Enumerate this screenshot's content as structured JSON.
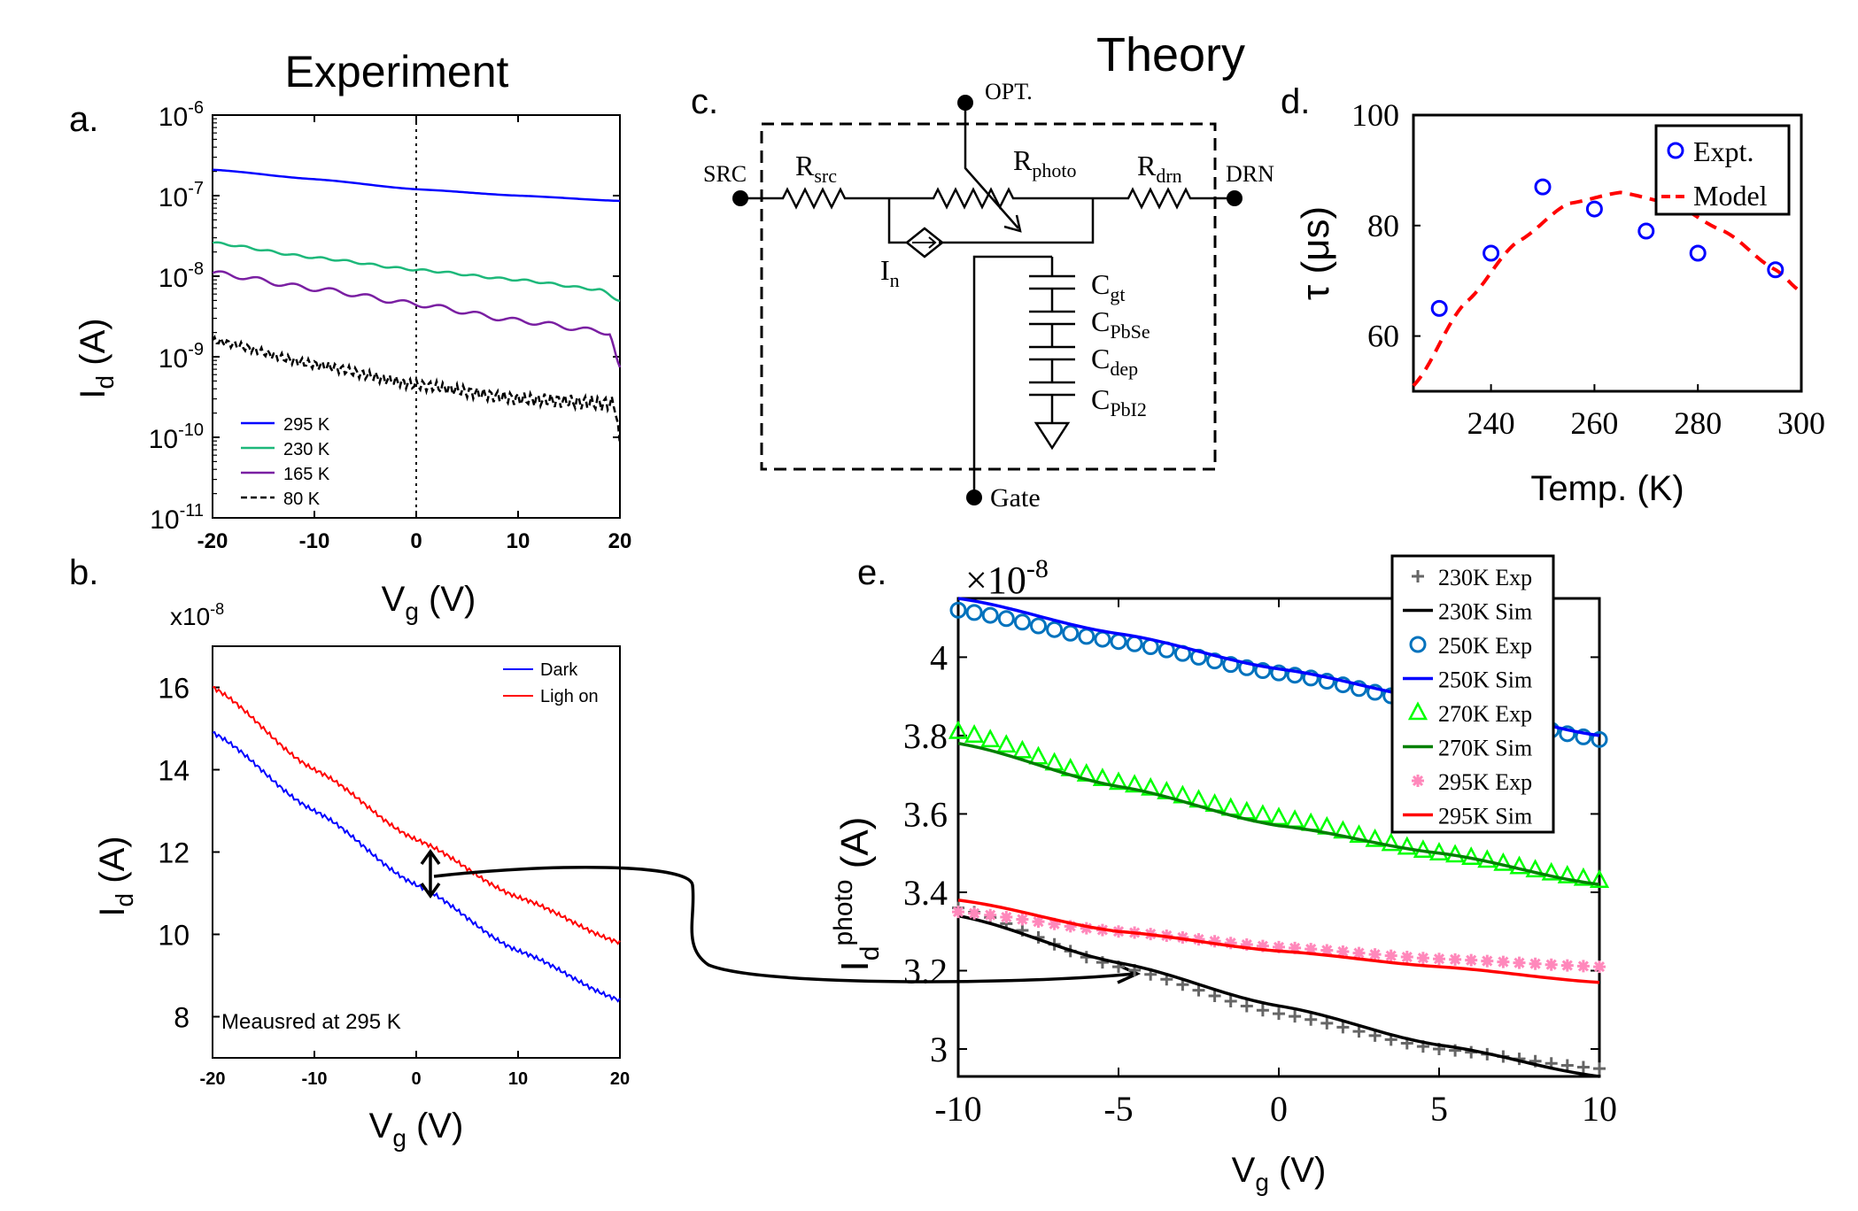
{
  "titles": {
    "experiment": "Experiment",
    "theory": "Theory"
  },
  "panel_labels": {
    "a": "a.",
    "b": "b.",
    "c": "c.",
    "d": "d.",
    "e": "e."
  },
  "colors": {
    "blue": "#0000ff",
    "green": "#1db87a",
    "purple": "#7a1fa2",
    "black": "#000000",
    "red": "#ff0000",
    "e_blue_marker": "#0072bd",
    "e_green": "#00ff00",
    "e_darkgreen": "#008000",
    "e_pink": "#ff88bb",
    "e_gray": "#666666"
  },
  "circuit": {
    "opt": "OPT.",
    "src": "SRC",
    "drn": "DRN",
    "gate": "Gate",
    "r_src": {
      "main": "R",
      "sub": "src"
    },
    "r_photo": {
      "main": "R",
      "sub": "photo"
    },
    "r_drn": {
      "main": "R",
      "sub": "drn"
    },
    "i_n": {
      "main": "I",
      "sub": "n"
    },
    "c_gt": {
      "main": "C",
      "sub": "gt"
    },
    "c_pbse": {
      "main": "C",
      "sub": "PbSe"
    },
    "c_dep": {
      "main": "C",
      "sub": "dep"
    },
    "c_pbi2": {
      "main": "C",
      "sub": "PbI2"
    }
  },
  "chart_data": [
    {
      "id": "a",
      "type": "line",
      "xlabel": {
        "main": "V",
        "sub": "g",
        "rest": " (V)"
      },
      "ylabel": {
        "main": "I",
        "sub": "d",
        "rest": " (A)"
      },
      "yscale": "log",
      "xlim": [
        -20,
        20
      ],
      "ylim": [
        1e-11,
        1e-06
      ],
      "xticks": [
        "-20",
        "-10",
        "0",
        "10",
        "20"
      ],
      "yticks": [
        {
          "base": "10",
          "exp": "-6",
          "value": 1e-06
        },
        {
          "base": "10",
          "exp": "-7",
          "value": 1e-07
        },
        {
          "base": "10",
          "exp": "-8",
          "value": 1e-08
        },
        {
          "base": "10",
          "exp": "-9",
          "value": 1e-09
        },
        {
          "base": "10",
          "exp": "-10",
          "value": 1e-10
        },
        {
          "base": "10",
          "exp": "-11",
          "value": 1e-11
        }
      ],
      "vline_x": 0,
      "legend_position": "bottom-left",
      "series": [
        {
          "name": "295 K",
          "color": "#0000ff",
          "dash": false,
          "x": [
            -20,
            -10,
            0,
            10,
            20
          ],
          "y": [
            2.1e-07,
            1.6e-07,
            1.2e-07,
            1e-07,
            8.6e-08
          ]
        },
        {
          "name": "230 K",
          "color": "#1db87a",
          "dash": false,
          "x": [
            -20,
            -10,
            0,
            10,
            18,
            20
          ],
          "y": [
            2.6e-08,
            1.7e-08,
            1.2e-08,
            9e-09,
            6.8e-09,
            5e-09
          ]
        },
        {
          "name": "165 K",
          "color": "#7a1fa2",
          "dash": false,
          "x": [
            -20,
            -10,
            0,
            10,
            19,
            20
          ],
          "y": [
            1.1e-08,
            7e-09,
            4.5e-09,
            2.8e-09,
            2e-09,
            7e-10
          ]
        },
        {
          "name": "80 K",
          "color": "#000000",
          "dash": true,
          "x": [
            -20,
            -10,
            0,
            10,
            19.5,
            20
          ],
          "y": [
            1.6e-09,
            8e-10,
            4.5e-10,
            3e-10,
            2.6e-10,
            8e-11
          ]
        }
      ]
    },
    {
      "id": "b",
      "type": "line",
      "xlabel": {
        "main": "V",
        "sub": "g",
        "rest": " (V)"
      },
      "ylabel": {
        "main": "I",
        "sub": "d",
        "rest": " (A)"
      },
      "yscale_note": {
        "base": "x10",
        "exp": "-8"
      },
      "xlim": [
        -20,
        20
      ],
      "ylim": [
        7,
        17
      ],
      "xticks": [
        "-20",
        "-10",
        "0",
        "10",
        "20"
      ],
      "yticks": [
        "8",
        "10",
        "12",
        "14",
        "16"
      ],
      "annotation": "Meausred at 295 K",
      "legend_position": "top-right",
      "series": [
        {
          "name": "Dark",
          "color": "#0000ff",
          "x": [
            -20,
            -10,
            0,
            10,
            20
          ],
          "y": [
            14.9,
            13.0,
            11.2,
            9.6,
            8.4
          ]
        },
        {
          "name": "Ligh on",
          "color": "#ff0000",
          "x": [
            -20,
            -10,
            0,
            10,
            20
          ],
          "y": [
            16.0,
            14.0,
            12.3,
            10.9,
            9.8
          ]
        }
      ]
    },
    {
      "id": "d",
      "type": "scatter",
      "xlabel": "Temp. (K)",
      "ylabel": "τ (μs)",
      "xlim": [
        225,
        300
      ],
      "ylim": [
        50,
        100
      ],
      "xticks": [
        "240",
        "260",
        "280",
        "300"
      ],
      "yticks": [
        "60",
        "80",
        "100"
      ],
      "legend_position": "top-right",
      "series": [
        {
          "name": "Expt.",
          "color": "#0000ff",
          "marker": "circle",
          "x": [
            230,
            240,
            250,
            260,
            270,
            280,
            295
          ],
          "y": [
            65,
            75,
            87,
            83,
            79,
            75,
            72
          ]
        },
        {
          "name": "Model",
          "color": "#ff0000",
          "dash": true,
          "x": [
            225,
            235,
            245,
            255,
            265,
            275,
            285,
            295,
            300
          ],
          "y": [
            51,
            66,
            77,
            84,
            86,
            84,
            79,
            72,
            68
          ]
        }
      ]
    },
    {
      "id": "e",
      "type": "line",
      "xlabel": {
        "main": "V",
        "sub": "g",
        "rest": " (V)"
      },
      "ylabel": {
        "main": "I",
        "sub": "d",
        "sup": "photo",
        "rest": " (A)"
      },
      "yscale_note": {
        "base": "×10",
        "exp": "-8"
      },
      "xlim": [
        -10,
        10
      ],
      "ylim": [
        2.93,
        4.15
      ],
      "xticks": [
        "-10",
        "-5",
        "0",
        "5",
        "10"
      ],
      "yticks": [
        "3",
        "3.2",
        "3.4",
        "3.6",
        "3.8",
        "4"
      ],
      "legend_position": "top-right",
      "series": [
        {
          "name": "230K Exp",
          "color": "#666666",
          "marker": "plus",
          "x": [
            -10,
            -5,
            0,
            5,
            10
          ],
          "y": [
            3.36,
            3.21,
            3.09,
            3.0,
            2.95
          ]
        },
        {
          "name": "230K Sim",
          "color": "#000000",
          "marker": "none",
          "x": [
            -10,
            -5,
            0,
            5,
            10
          ],
          "y": [
            3.34,
            3.22,
            3.11,
            3.01,
            2.93
          ]
        },
        {
          "name": "250K Exp",
          "color": "#0072bd",
          "marker": "circle",
          "x": [
            -10,
            -5,
            0,
            5,
            10
          ],
          "y": [
            4.12,
            4.04,
            3.96,
            3.88,
            3.79
          ]
        },
        {
          "name": "250K Sim",
          "color": "#0000ff",
          "marker": "none",
          "x": [
            -10,
            -5,
            0,
            5,
            10
          ],
          "y": [
            4.15,
            4.06,
            3.97,
            3.89,
            3.8
          ]
        },
        {
          "name": "270K Exp",
          "color": "#00ff00",
          "marker": "triangle",
          "x": [
            -10,
            -5,
            0,
            5,
            10
          ],
          "y": [
            3.81,
            3.68,
            3.59,
            3.5,
            3.43
          ]
        },
        {
          "name": "270K Sim",
          "color": "#008000",
          "marker": "none",
          "x": [
            -10,
            -5,
            0,
            5,
            10
          ],
          "y": [
            3.78,
            3.67,
            3.57,
            3.5,
            3.42
          ]
        },
        {
          "name": "295K Exp",
          "color": "#ff88bb",
          "marker": "star",
          "x": [
            -10,
            -5,
            0,
            5,
            10
          ],
          "y": [
            3.35,
            3.3,
            3.26,
            3.23,
            3.21
          ]
        },
        {
          "name": "295K Sim",
          "color": "#ff0000",
          "marker": "none",
          "x": [
            -10,
            -5,
            0,
            5,
            10
          ],
          "y": [
            3.38,
            3.3,
            3.25,
            3.21,
            3.17
          ]
        }
      ]
    }
  ]
}
